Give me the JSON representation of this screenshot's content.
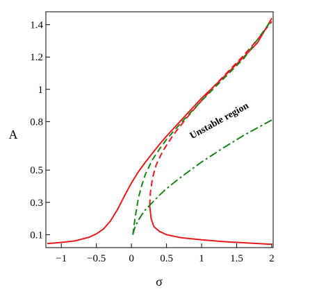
{
  "chart_data": {
    "type": "line",
    "xlabel": "σ",
    "ylabel": "A",
    "xlim": [
      -1.22,
      2.02
    ],
    "ylim": [
      0.02,
      1.48
    ],
    "x_ticks": [
      -1,
      -0.5,
      0,
      0.5,
      1,
      1.5,
      2
    ],
    "x_tick_labels": [
      "−1",
      "−0.5",
      "0",
      "0.5",
      "1",
      "1.5",
      "2"
    ],
    "y_ticks": [
      0.1,
      0.3,
      0.5,
      0.8,
      1,
      1.2,
      1.4
    ],
    "y_tick_labels": [
      "0.1",
      "0.3",
      "0.5",
      "0.8",
      "1",
      "1.2",
      "1.4"
    ],
    "grid": false,
    "annotations": [
      {
        "text": "Unstable region",
        "x": 1.27,
        "y": 0.79,
        "angle": -29
      }
    ],
    "colors": {
      "red": "#e8191c",
      "green": "#138513"
    },
    "series": [
      {
        "style": "solid",
        "color": "#e8191c",
        "points": [
          [
            -1.2,
            0.045
          ],
          [
            -1.0,
            0.052
          ],
          [
            -0.8,
            0.062
          ],
          [
            -0.6,
            0.085
          ],
          [
            -0.5,
            0.105
          ],
          [
            -0.4,
            0.135
          ],
          [
            -0.3,
            0.185
          ],
          [
            -0.2,
            0.255
          ],
          [
            -0.1,
            0.34
          ],
          [
            0.0,
            0.42
          ],
          [
            0.1,
            0.49
          ],
          [
            0.2,
            0.55
          ],
          [
            0.3,
            0.605
          ],
          [
            0.4,
            0.66
          ],
          [
            0.5,
            0.71
          ],
          [
            0.7,
            0.805
          ],
          [
            1.0,
            0.945
          ],
          [
            1.3,
            1.07
          ],
          [
            1.6,
            1.2
          ],
          [
            1.8,
            1.29
          ],
          [
            2.0,
            1.44
          ]
        ]
      },
      {
        "style": "solid",
        "color": "#e8191c",
        "points": [
          [
            0.26,
            0.28
          ],
          [
            0.28,
            0.2
          ],
          [
            0.32,
            0.15
          ],
          [
            0.4,
            0.12
          ],
          [
            0.5,
            0.1
          ],
          [
            0.7,
            0.082
          ],
          [
            1.0,
            0.068
          ],
          [
            1.3,
            0.058
          ],
          [
            1.6,
            0.05
          ],
          [
            2.0,
            0.04
          ]
        ]
      },
      {
        "style": "dashed",
        "color": "#e8191c",
        "points": [
          [
            0.26,
            0.28
          ],
          [
            0.27,
            0.36
          ],
          [
            0.3,
            0.45
          ],
          [
            0.35,
            0.53
          ],
          [
            0.45,
            0.62
          ],
          [
            0.6,
            0.72
          ],
          [
            0.8,
            0.83
          ],
          [
            1.0,
            0.93
          ],
          [
            1.2,
            1.03
          ],
          [
            1.4,
            1.12
          ],
          [
            1.6,
            1.21
          ],
          [
            1.8,
            1.31
          ],
          [
            2.0,
            1.42
          ]
        ]
      },
      {
        "style": "dashed",
        "color": "#138513",
        "points": [
          [
            0.02,
            0.1
          ],
          [
            0.05,
            0.2
          ],
          [
            0.1,
            0.33
          ],
          [
            0.15,
            0.41
          ],
          [
            0.2,
            0.475
          ],
          [
            0.3,
            0.565
          ],
          [
            0.4,
            0.63
          ],
          [
            0.5,
            0.69
          ],
          [
            0.7,
            0.79
          ],
          [
            1.0,
            0.93
          ],
          [
            1.3,
            1.06
          ],
          [
            1.6,
            1.19
          ],
          [
            2.0,
            1.43
          ]
        ]
      },
      {
        "style": "dashdot",
        "color": "#138513",
        "points": [
          [
            0.02,
            0.1
          ],
          [
            0.04,
            0.135
          ],
          [
            0.07,
            0.165
          ],
          [
            0.1,
            0.19
          ],
          [
            0.15,
            0.225
          ],
          [
            0.2,
            0.255
          ],
          [
            0.3,
            0.3
          ],
          [
            0.4,
            0.345
          ],
          [
            0.5,
            0.385
          ],
          [
            0.7,
            0.455
          ],
          [
            1.0,
            0.55
          ],
          [
            1.3,
            0.635
          ],
          [
            1.6,
            0.715
          ],
          [
            2.0,
            0.81
          ]
        ]
      }
    ]
  }
}
